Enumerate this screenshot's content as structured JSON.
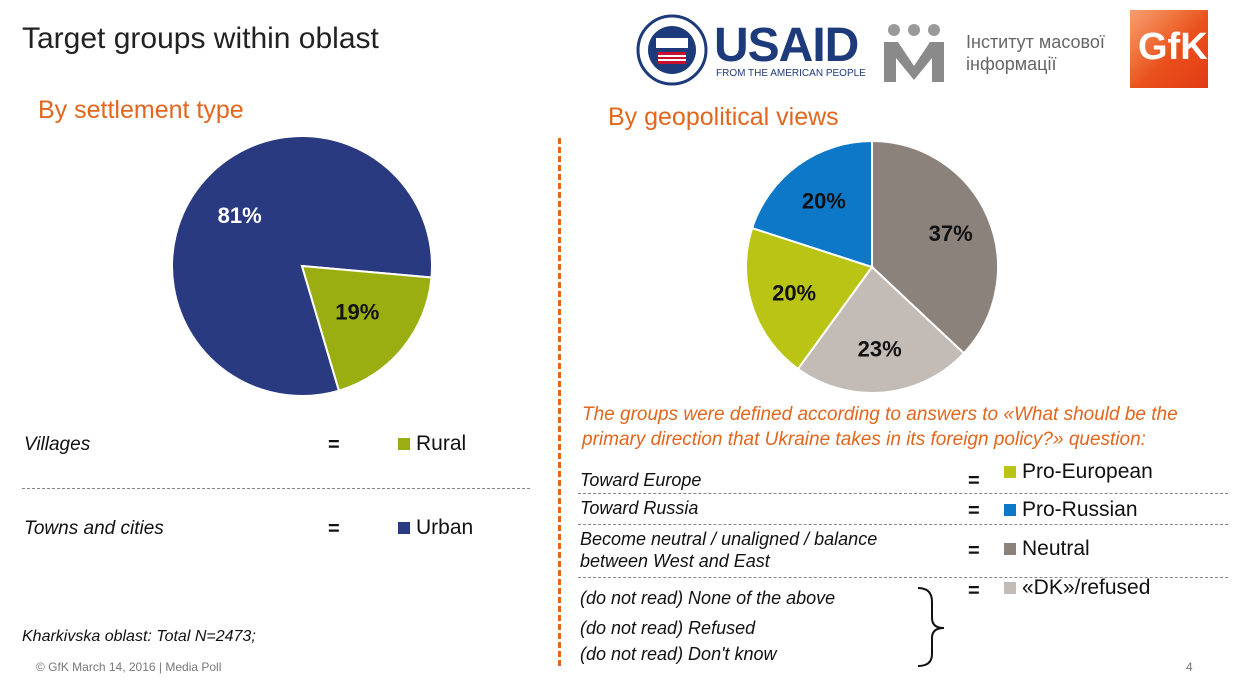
{
  "slide": {
    "title": "Target groups within oblast",
    "page_number": "4",
    "footer": "© GfK March 14, 2016 | Media Poll",
    "note": "Kharkivska oblast: Total N=2473;"
  },
  "logos": {
    "usaid_main": "USAID",
    "usaid_sub": "FROM THE AMERICAN PEOPLE",
    "imi_line1": "Інститут масової",
    "imi_line2": "інформації",
    "gfk": "GfK"
  },
  "left": {
    "heading": "By settlement type",
    "rows": [
      {
        "label": "Villages",
        "eq": "=",
        "group": "Rural",
        "color": "#9aae12"
      },
      {
        "label": "Towns and cities",
        "eq": "=",
        "group": "Urban",
        "color": "#2a3a80"
      }
    ]
  },
  "right": {
    "heading": "By geopolitical views",
    "definition": "The groups were defined according to answers to «What should be the primary direction that Ukraine takes in its foreign policy?» question:",
    "rows": [
      {
        "label": "Toward Europe",
        "eq": "=",
        "group": "Pro-European",
        "color": "#b9c414"
      },
      {
        "label": "Toward Russia",
        "eq": "=",
        "group": "Pro-Russian",
        "color": "#0d78c8"
      },
      {
        "label": "Become neutral / unaligned / balance between West and East",
        "eq": "=",
        "group": "Neutral",
        "color": "#8b827c"
      },
      {
        "label": "(do not read) None of the above",
        "eq": "=",
        "group": "«DK»/refused",
        "color": "#c3bbb6"
      }
    ],
    "extra_labels": [
      "(do not read) Refused",
      "(do not read) Don't know"
    ]
  },
  "chart_data": [
    {
      "type": "pie",
      "title": "By settlement type",
      "slices": [
        {
          "label": "Urban",
          "value": 81,
          "display": "81%",
          "color": "#2a3a80"
        },
        {
          "label": "Rural",
          "value": 19,
          "display": "19%",
          "color": "#9aae12"
        }
      ]
    },
    {
      "type": "pie",
      "title": "By geopolitical views",
      "slices": [
        {
          "label": "Neutral",
          "value": 37,
          "display": "37%",
          "color": "#8b827c"
        },
        {
          "label": "«DK»/refused",
          "value": 23,
          "display": "23%",
          "color": "#c3bbb6"
        },
        {
          "label": "Pro-European",
          "value": 20,
          "display": "20%",
          "color": "#b9c414"
        },
        {
          "label": "Pro-Russian",
          "value": 20,
          "display": "20%",
          "color": "#0d78c8"
        }
      ]
    }
  ]
}
